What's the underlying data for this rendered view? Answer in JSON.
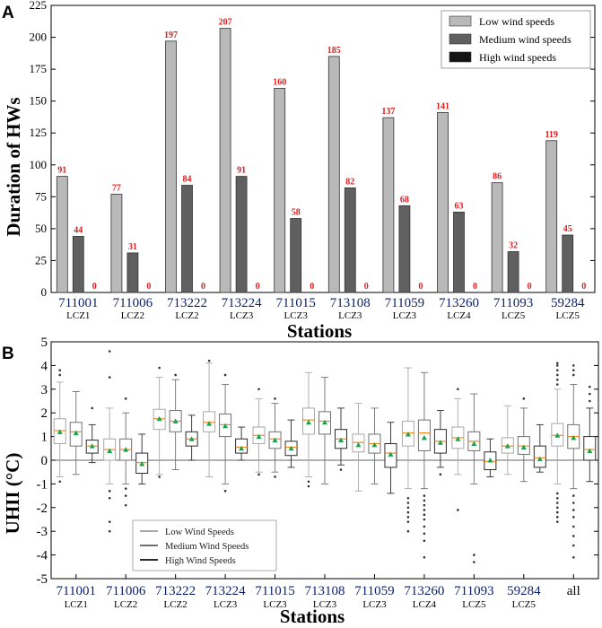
{
  "chart_data": [
    {
      "panel": "A",
      "type": "bar",
      "xlabel": "Stations",
      "ylabel": "Duration of HWs",
      "ylim": [
        0,
        225
      ],
      "yticks": [
        0,
        25,
        50,
        75,
        100,
        125,
        150,
        175,
        200,
        225
      ],
      "categories": [
        "711001",
        "711006",
        "713222",
        "713224",
        "711015",
        "713108",
        "711059",
        "713260",
        "711093",
        "59284"
      ],
      "lcz": [
        "LCZ1",
        "LCZ2",
        "LCZ2",
        "LCZ3",
        "LCZ3",
        "LCZ3",
        "LCZ3",
        "LCZ4",
        "LCZ5",
        "LCZ5"
      ],
      "series": [
        {
          "name": "Low wind speeds",
          "color": "#b9b9b9",
          "values": [
            91,
            77,
            197,
            207,
            160,
            185,
            137,
            141,
            86,
            119
          ]
        },
        {
          "name": "Medium wind speeds",
          "color": "#606060",
          "values": [
            44,
            31,
            84,
            91,
            58,
            82,
            68,
            63,
            32,
            45
          ]
        },
        {
          "name": "High wind speeds",
          "color": "#141414",
          "values": [
            0,
            0,
            0,
            0,
            0,
            0,
            0,
            0,
            0,
            0
          ]
        }
      ],
      "legend_position": "top-right",
      "label_color": "#e21b1b"
    },
    {
      "panel": "B",
      "type": "box",
      "xlabel": "Stations",
      "ylabel": "UHII (°C)",
      "ylim": [
        -5,
        5
      ],
      "yticks": [
        -5,
        -4,
        -3,
        -2,
        -1,
        0,
        1,
        2,
        3,
        4,
        5
      ],
      "categories": [
        "711001",
        "711006",
        "713222",
        "713224",
        "711015",
        "713108",
        "711059",
        "713260",
        "711093",
        "59284",
        "all"
      ],
      "lcz": [
        "LCZ1",
        "LCZ2",
        "LCZ2",
        "LCZ3",
        "LCZ3",
        "LCZ3",
        "LCZ3",
        "LCZ4",
        "LCZ5",
        "LCZ5",
        ""
      ],
      "series_names": [
        "Low Wind Speeds",
        "Medium Wind Speeds",
        "High Wind Speeds"
      ],
      "legend_position": "lower-left",
      "boxes": [
        [
          {
            "wl": -0.7,
            "q1": 0.7,
            "med": 1.25,
            "q3": 1.75,
            "wh": 3.3,
            "mean": 1.2,
            "out": [
              3.6,
              3.8,
              -0.9
            ]
          },
          {
            "wl": -0.6,
            "q1": 0.6,
            "med": 1.2,
            "q3": 1.6,
            "wh": 2.9,
            "mean": 1.15,
            "out": []
          },
          {
            "wl": -0.1,
            "q1": 0.3,
            "med": 0.6,
            "q3": 0.85,
            "wh": 1.5,
            "mean": 0.6,
            "out": [
              2.2
            ]
          }
        ],
        [
          {
            "wl": -1.0,
            "q1": 0.0,
            "med": 0.45,
            "q3": 0.9,
            "wh": 2.2,
            "mean": 0.4,
            "out": [
              4.6,
              3.5,
              -1.3,
              -1.6,
              -2.6,
              -3.0
            ]
          },
          {
            "wl": -1.0,
            "q1": 0.0,
            "med": 0.45,
            "q3": 0.9,
            "wh": 2.0,
            "mean": 0.45,
            "out": [
              2.6,
              -1.2,
              -1.5,
              -1.9
            ]
          },
          {
            "wl": -1.0,
            "q1": -0.55,
            "med": -0.1,
            "q3": 0.3,
            "wh": 1.1,
            "mean": -0.15,
            "out": []
          }
        ],
        [
          {
            "wl": -0.6,
            "q1": 1.3,
            "med": 1.75,
            "q3": 2.15,
            "wh": 3.5,
            "mean": 1.75,
            "out": [
              3.9,
              -0.7
            ]
          },
          {
            "wl": -0.4,
            "q1": 1.2,
            "med": 1.65,
            "q3": 2.1,
            "wh": 3.4,
            "mean": 1.65,
            "out": [
              3.6
            ]
          },
          {
            "wl": 0.0,
            "q1": 0.6,
            "med": 0.9,
            "q3": 1.2,
            "wh": 1.9,
            "mean": 0.9,
            "out": []
          }
        ],
        [
          {
            "wl": -0.7,
            "q1": 1.2,
            "med": 1.6,
            "q3": 2.05,
            "wh": 4.1,
            "mean": 1.55,
            "out": [
              4.2
            ]
          },
          {
            "wl": -1.0,
            "q1": 1.0,
            "med": 1.5,
            "q3": 1.95,
            "wh": 3.2,
            "mean": 1.45,
            "out": [
              3.6,
              -1.3
            ]
          },
          {
            "wl": 0.0,
            "q1": 0.3,
            "med": 0.55,
            "q3": 0.9,
            "wh": 1.4,
            "mean": 0.5,
            "out": []
          }
        ],
        [
          {
            "wl": -0.5,
            "q1": 0.7,
            "med": 1.05,
            "q3": 1.4,
            "wh": 2.6,
            "mean": 1.0,
            "out": [
              -0.6,
              3.0
            ]
          },
          {
            "wl": -0.5,
            "q1": 0.5,
            "med": 0.9,
            "q3": 1.2,
            "wh": 2.4,
            "mean": 0.85,
            "out": [
              2.6,
              -0.7
            ]
          },
          {
            "wl": -0.3,
            "q1": 0.2,
            "med": 0.55,
            "q3": 0.8,
            "wh": 1.7,
            "mean": 0.5,
            "out": []
          }
        ],
        [
          {
            "wl": -0.7,
            "q1": 1.1,
            "med": 1.7,
            "q3": 2.2,
            "wh": 3.7,
            "mean": 1.6,
            "out": [
              -0.9,
              -1.1
            ]
          },
          {
            "wl": -1.0,
            "q1": 1.1,
            "med": 1.65,
            "q3": 2.05,
            "wh": 3.5,
            "mean": 1.6,
            "out": []
          },
          {
            "wl": -0.2,
            "q1": 0.5,
            "med": 0.9,
            "q3": 1.3,
            "wh": 2.2,
            "mean": 0.85,
            "out": [
              -0.4
            ]
          }
        ],
        [
          {
            "wl": -1.3,
            "q1": 0.35,
            "med": 0.75,
            "q3": 1.1,
            "wh": 2.4,
            "mean": 0.65,
            "out": []
          },
          {
            "wl": -1.0,
            "q1": 0.3,
            "med": 0.7,
            "q3": 1.1,
            "wh": 2.2,
            "mean": 0.65,
            "out": []
          },
          {
            "wl": -1.4,
            "q1": -0.3,
            "med": 0.3,
            "q3": 0.7,
            "wh": 1.6,
            "mean": 0.25,
            "out": []
          }
        ],
        [
          {
            "wl": -1.2,
            "q1": 0.6,
            "med": 1.15,
            "q3": 1.65,
            "wh": 3.9,
            "mean": 1.1,
            "out": [
              -1.6,
              -1.8,
              -2.0,
              -2.2,
              -2.4,
              -2.6,
              -3.0
            ]
          },
          {
            "wl": -1.2,
            "q1": 0.4,
            "med": 1.15,
            "q3": 1.7,
            "wh": 3.7,
            "mean": 0.95,
            "out": [
              -1.5,
              -1.7,
              -1.9,
              -2.1,
              -2.3,
              -2.5,
              -2.8,
              -3.1,
              -3.4,
              -4.1
            ]
          },
          {
            "wl": -0.3,
            "q1": 0.3,
            "med": 0.8,
            "q3": 1.3,
            "wh": 2.1,
            "mean": 0.75,
            "out": [
              -0.6
            ]
          }
        ],
        [
          {
            "wl": -0.6,
            "q1": 0.5,
            "med": 0.95,
            "q3": 1.4,
            "wh": 2.6,
            "mean": 0.9,
            "out": [
              3.0,
              -2.1
            ]
          },
          {
            "wl": -1.0,
            "q1": 0.4,
            "med": 0.8,
            "q3": 1.2,
            "wh": 2.8,
            "mean": 0.7,
            "out": [
              -4.0,
              -4.3
            ]
          },
          {
            "wl": -0.7,
            "q1": -0.4,
            "med": -0.05,
            "q3": 0.35,
            "wh": 0.9,
            "mean": 0.0,
            "out": []
          }
        ],
        [
          {
            "wl": -0.6,
            "q1": 0.3,
            "med": 0.6,
            "q3": 0.95,
            "wh": 2.3,
            "mean": 0.6,
            "out": []
          },
          {
            "wl": -0.9,
            "q1": 0.25,
            "med": 0.6,
            "q3": 1.0,
            "wh": 2.2,
            "mean": 0.55,
            "out": [
              2.6
            ]
          },
          {
            "wl": -0.5,
            "q1": -0.3,
            "med": 0.1,
            "q3": 0.6,
            "wh": 1.5,
            "mean": 0.05,
            "out": []
          }
        ],
        [
          {
            "wl": -1.0,
            "q1": 0.6,
            "med": 1.05,
            "q3": 1.55,
            "wh": 3.0,
            "mean": 1.05,
            "out": [
              3.2,
              3.4,
              3.6,
              3.8,
              4.0,
              4.1,
              -1.4,
              -1.6,
              -1.8,
              -2.0,
              -2.2,
              -2.4,
              -2.6
            ]
          },
          {
            "wl": -1.2,
            "q1": 0.5,
            "med": 1.0,
            "q3": 1.5,
            "wh": 3.2,
            "mean": 0.95,
            "out": [
              3.6,
              3.8,
              4.0,
              -1.5,
              -1.8,
              -2.1,
              -2.4,
              -2.8,
              -3.2,
              -3.6,
              -4.1
            ]
          },
          {
            "wl": -0.9,
            "q1": 0.0,
            "med": 0.45,
            "q3": 1.0,
            "wh": 2.2,
            "mean": 0.4,
            "out": [
              2.5,
              2.8,
              3.1
            ]
          }
        ]
      ]
    }
  ]
}
